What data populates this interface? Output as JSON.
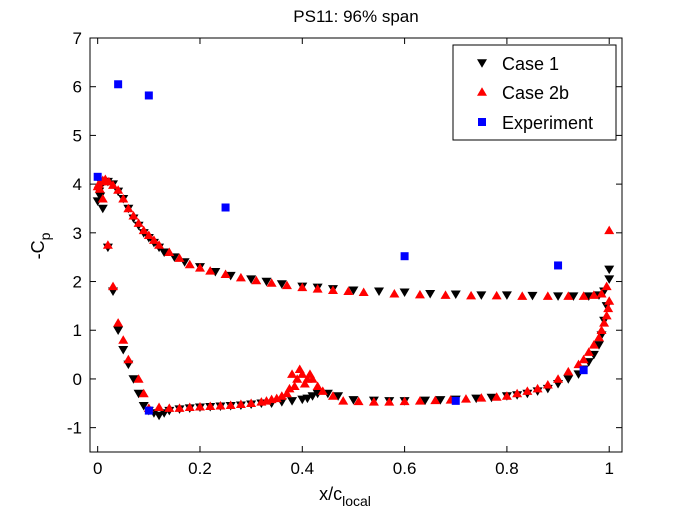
{
  "chart_data": {
    "type": "scatter",
    "title": "PS11: 96% span",
    "xlabel": "x/c",
    "xlabel_sub": "local",
    "ylabel": "-C",
    "ylabel_sub": "p",
    "xlim": [
      -0.015,
      1.025
    ],
    "ylim": [
      -1.5,
      7
    ],
    "xticks": [
      0,
      0.2,
      0.4,
      0.6,
      0.8,
      1
    ],
    "xtick_labels": [
      "0",
      "0.2",
      "0.4",
      "0.6",
      "0.8",
      "1"
    ],
    "yticks": [
      -1,
      0,
      1,
      2,
      3,
      4,
      5,
      6,
      7
    ],
    "ytick_labels": [
      "-1",
      "0",
      "1",
      "2",
      "3",
      "4",
      "5",
      "6",
      "7"
    ],
    "grid": false,
    "legend_position": "top-right",
    "series": [
      {
        "name": "Case 1",
        "marker": "triangle-down",
        "color": "#000000",
        "x": [
          0.0,
          0.003,
          0.008,
          0.012,
          0.02,
          0.03,
          0.04,
          0.05,
          0.06,
          0.07,
          0.08,
          0.09,
          0.1,
          0.11,
          0.12,
          0.13,
          0.15,
          0.17,
          0.2,
          0.23,
          0.26,
          0.3,
          0.33,
          0.36,
          0.4,
          0.43,
          0.46,
          0.5,
          0.55,
          0.6,
          0.65,
          0.7,
          0.75,
          0.8,
          0.85,
          0.9,
          0.93,
          0.96,
          0.98,
          0.99,
          1.0,
          1.0,
          0.995,
          0.99,
          0.985,
          0.98,
          0.97,
          0.96,
          0.95,
          0.94,
          0.92,
          0.9,
          0.88,
          0.86,
          0.84,
          0.82,
          0.8,
          0.77,
          0.74,
          0.7,
          0.67,
          0.64,
          0.6,
          0.57,
          0.54,
          0.5,
          0.47,
          0.45,
          0.43,
          0.42,
          0.41,
          0.4,
          0.38,
          0.36,
          0.34,
          0.32,
          0.3,
          0.28,
          0.26,
          0.24,
          0.22,
          0.2,
          0.18,
          0.16,
          0.14,
          0.13,
          0.12,
          0.11,
          0.1,
          0.09,
          0.08,
          0.07,
          0.06,
          0.05,
          0.04,
          0.03,
          0.02,
          0.01,
          0.005
        ],
        "y": [
          3.65,
          3.85,
          4.0,
          4.05,
          4.05,
          4.0,
          3.85,
          3.7,
          3.5,
          3.3,
          3.15,
          3.0,
          2.9,
          2.8,
          2.7,
          2.6,
          2.5,
          2.4,
          2.3,
          2.2,
          2.12,
          2.05,
          2.0,
          1.95,
          1.9,
          1.88,
          1.85,
          1.82,
          1.8,
          1.78,
          1.75,
          1.74,
          1.72,
          1.72,
          1.71,
          1.7,
          1.7,
          1.7,
          1.72,
          1.8,
          2.05,
          2.25,
          1.5,
          1.2,
          0.9,
          0.7,
          0.5,
          0.35,
          0.2,
          0.1,
          0.0,
          -0.1,
          -0.2,
          -0.25,
          -0.3,
          -0.33,
          -0.35,
          -0.38,
          -0.4,
          -0.42,
          -0.43,
          -0.44,
          -0.45,
          -0.45,
          -0.44,
          -0.43,
          -0.35,
          -0.3,
          -0.3,
          -0.35,
          -0.4,
          -0.42,
          -0.45,
          -0.47,
          -0.5,
          -0.5,
          -0.52,
          -0.54,
          -0.55,
          -0.56,
          -0.57,
          -0.58,
          -0.6,
          -0.62,
          -0.65,
          -0.7,
          -0.75,
          -0.7,
          -0.65,
          -0.55,
          -0.3,
          0.0,
          0.3,
          0.6,
          1.0,
          1.8,
          2.7,
          3.5,
          3.75
        ]
      },
      {
        "name": "Case 2b",
        "marker": "triangle-up",
        "color": "#ff0000",
        "x": [
          0.0,
          0.002,
          0.006,
          0.01,
          0.015,
          0.022,
          0.03,
          0.04,
          0.05,
          0.06,
          0.07,
          0.08,
          0.09,
          0.1,
          0.11,
          0.12,
          0.14,
          0.16,
          0.18,
          0.2,
          0.22,
          0.25,
          0.28,
          0.31,
          0.34,
          0.37,
          0.4,
          0.43,
          0.46,
          0.49,
          0.52,
          0.58,
          0.63,
          0.68,
          0.73,
          0.78,
          0.83,
          0.88,
          0.92,
          0.95,
          0.97,
          0.985,
          0.995,
          1.0,
          1.0,
          0.998,
          0.995,
          0.99,
          0.985,
          0.98,
          0.97,
          0.96,
          0.95,
          0.94,
          0.92,
          0.9,
          0.88,
          0.86,
          0.84,
          0.82,
          0.8,
          0.78,
          0.75,
          0.72,
          0.69,
          0.66,
          0.63,
          0.6,
          0.57,
          0.54,
          0.51,
          0.48,
          0.46,
          0.44,
          0.43,
          0.42,
          0.415,
          0.41,
          0.405,
          0.4,
          0.395,
          0.39,
          0.385,
          0.38,
          0.375,
          0.37,
          0.36,
          0.35,
          0.34,
          0.33,
          0.32,
          0.3,
          0.28,
          0.26,
          0.24,
          0.22,
          0.2,
          0.18,
          0.16,
          0.14,
          0.12,
          0.1,
          0.09,
          0.08,
          0.06,
          0.05,
          0.04,
          0.03,
          0.02,
          0.01,
          0.004
        ],
        "y": [
          3.95,
          4.0,
          4.05,
          4.08,
          4.1,
          4.05,
          3.98,
          3.88,
          3.7,
          3.5,
          3.35,
          3.2,
          3.05,
          2.95,
          2.85,
          2.75,
          2.6,
          2.48,
          2.35,
          2.28,
          2.22,
          2.15,
          2.08,
          2.02,
          1.97,
          1.92,
          1.88,
          1.85,
          1.82,
          1.8,
          1.78,
          1.75,
          1.73,
          1.72,
          1.71,
          1.71,
          1.7,
          1.7,
          1.7,
          1.7,
          1.72,
          1.75,
          1.9,
          3.05,
          1.6,
          1.45,
          1.3,
          1.15,
          1.0,
          0.85,
          0.7,
          0.55,
          0.4,
          0.3,
          0.15,
          0.0,
          -0.12,
          -0.2,
          -0.25,
          -0.3,
          -0.35,
          -0.37,
          -0.39,
          -0.41,
          -0.43,
          -0.44,
          -0.45,
          -0.46,
          -0.47,
          -0.47,
          -0.46,
          -0.45,
          -0.35,
          -0.25,
          -0.15,
          0.0,
          0.1,
          0.0,
          -0.1,
          0.1,
          0.2,
          0.0,
          -0.15,
          0.1,
          -0.2,
          -0.3,
          -0.35,
          -0.4,
          -0.42,
          -0.45,
          -0.47,
          -0.5,
          -0.52,
          -0.54,
          -0.55,
          -0.56,
          -0.57,
          -0.58,
          -0.6,
          -0.6,
          -0.58,
          -0.6,
          -0.3,
          0.0,
          0.4,
          0.8,
          1.15,
          1.9,
          2.75,
          3.7,
          3.9
        ]
      },
      {
        "name": "Experiment",
        "marker": "square",
        "color": "#0000ff",
        "x": [
          0.0,
          0.04,
          0.1,
          0.25,
          0.6,
          0.9,
          0.1,
          0.7,
          0.95
        ],
        "y": [
          4.15,
          6.05,
          5.82,
          3.52,
          2.52,
          2.33,
          -0.65,
          -0.45,
          0.18
        ]
      }
    ]
  }
}
